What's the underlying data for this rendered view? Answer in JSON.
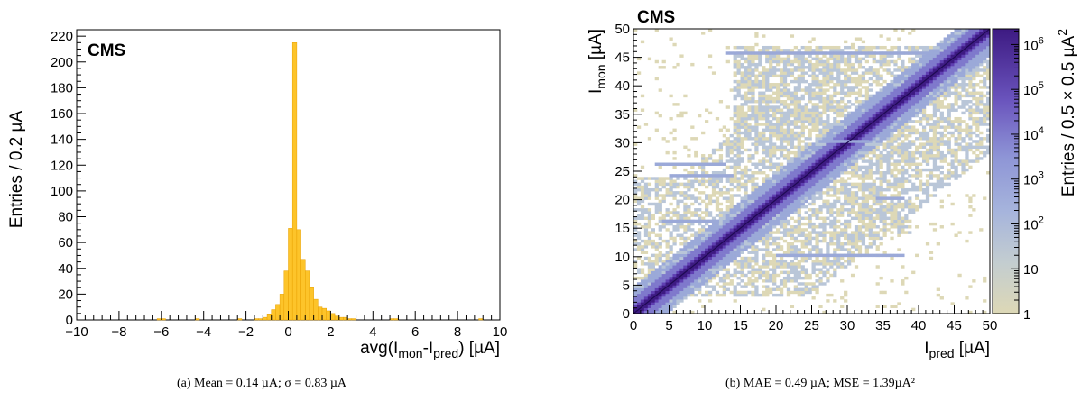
{
  "chart_data": [
    {
      "type": "bar",
      "label": "CMS",
      "xlabel": "avg(I_mon-I_pred) [µA]",
      "xlabel_parts": {
        "pre": "avg(I",
        "sub1": "mon",
        "mid": "-I",
        "sub2": "pred",
        "post": ") [µA]"
      },
      "ylabel": "Entries / 0.2 µA",
      "xlim": [
        -10,
        10
      ],
      "ylim": [
        0,
        225
      ],
      "xticks": [
        "−10",
        "−8",
        "−6",
        "−4",
        "−2",
        "0",
        "2",
        "4",
        "6",
        "8",
        "10"
      ],
      "yticks": [
        "0",
        "20",
        "40",
        "60",
        "80",
        "100",
        "120",
        "140",
        "160",
        "180",
        "200",
        "220"
      ],
      "bin_width": 0.2,
      "bin_start": -1.6,
      "values": [
        1,
        1,
        2,
        4,
        8,
        12,
        20,
        38,
        71,
        215,
        70,
        47,
        38,
        25,
        16,
        10,
        9,
        7,
        5,
        3,
        2,
        2,
        1,
        1
      ],
      "outliers": [
        {
          "x": -6.2,
          "y": 1
        },
        {
          "x": -6.0,
          "y": 1
        },
        {
          "x": -4.4,
          "y": 1
        },
        {
          "x": -2.4,
          "y": 1
        },
        {
          "x": 4.8,
          "y": 1
        },
        {
          "x": 5.0,
          "y": 1
        },
        {
          "x": 9.0,
          "y": 1
        }
      ],
      "color": "#fdc42a",
      "caption": "(a) Mean = 0.14 µA; σ = 0.83 µA"
    },
    {
      "type": "heatmap",
      "label": "CMS",
      "xlabel": "I_pred [µA]",
      "xlabel_parts": {
        "pre": "I",
        "sub": "pred",
        "post": " [µA]"
      },
      "ylabel": "I_mon [µA]",
      "ylabel_parts": {
        "pre": "I",
        "sub": "mon",
        "post": " [µA]"
      },
      "zlabel": "Entries / 0.5 × 0.5 µA²",
      "zlabel_parts": {
        "pre": "Entries / 0.5 × 0.5 µA",
        "sup": "2"
      },
      "xlim": [
        0,
        50
      ],
      "ylim": [
        0,
        50
      ],
      "xticks": [
        "0",
        "5",
        "10",
        "15",
        "20",
        "25",
        "30",
        "35",
        "40",
        "45",
        "50"
      ],
      "yticks": [
        "0",
        "5",
        "10",
        "15",
        "20",
        "25",
        "30",
        "35",
        "40",
        "45",
        "50"
      ],
      "zscale": "log",
      "zticks": [
        {
          "base": "1",
          "exp": ""
        },
        {
          "base": "10",
          "exp": ""
        },
        {
          "base": "10",
          "exp": "2"
        },
        {
          "base": "10",
          "exp": "3"
        },
        {
          "base": "10",
          "exp": "4"
        },
        {
          "base": "10",
          "exp": "5"
        },
        {
          "base": "10",
          "exp": "6"
        }
      ],
      "colormap": [
        "#ddd8b6",
        "#b9c6d8",
        "#9ba9d8",
        "#7f79cc",
        "#5f3fb2",
        "#3d1a82"
      ],
      "caption": "(b) MAE = 0.49 µA; MSE = 1.39µA²"
    }
  ]
}
